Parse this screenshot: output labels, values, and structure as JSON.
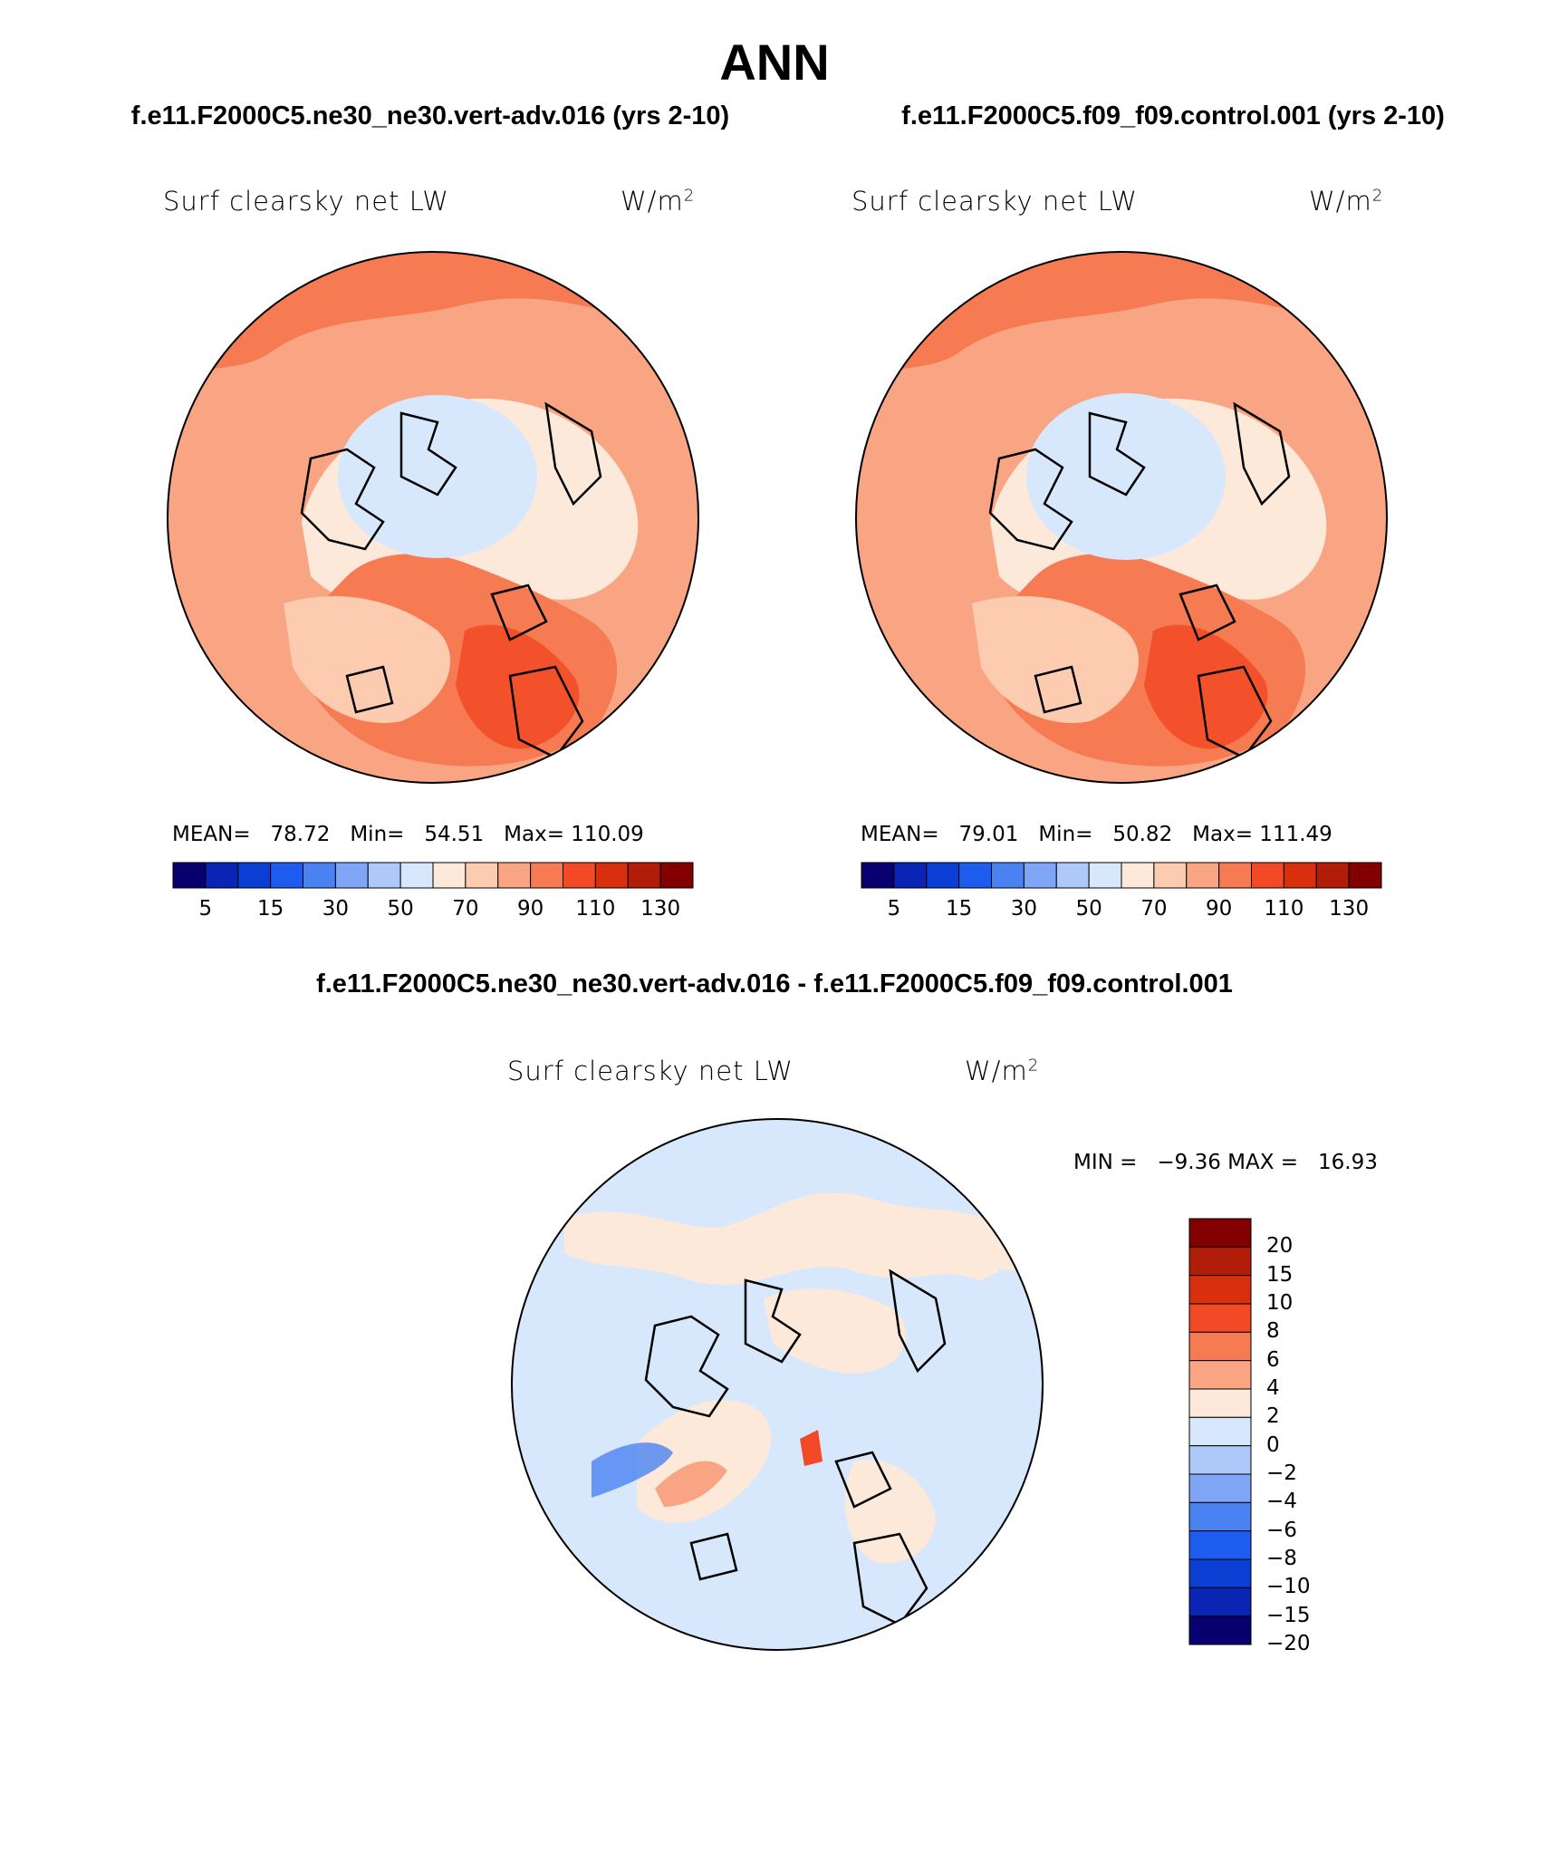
{
  "page_title": "ANN",
  "panels": [
    {
      "case_title": "f.e11.F2000C5.ne30_ne30.vert-adv.016 (yrs 2-10)",
      "variable": "Surf clearsky net LW",
      "units_base": "W/m",
      "units_exp": "2",
      "stats": {
        "mean_label": "MEAN=",
        "mean": "78.72",
        "min_label": "Min=",
        "min": "54.51",
        "max_label": "Max=",
        "max": "110.09"
      }
    },
    {
      "case_title": "f.e11.F2000C5.f09_f09.control.001 (yrs 2-10)",
      "variable": "Surf clearsky net LW",
      "units_base": "W/m",
      "units_exp": "2",
      "stats": {
        "mean_label": "MEAN=",
        "mean": "79.01",
        "min_label": "Min=",
        "min": "50.82",
        "max_label": "Max=",
        "max": "111.49"
      }
    }
  ],
  "difference": {
    "title": "f.e11.F2000C5.ne30_ne30.vert-adv.016 - f.e11.F2000C5.f09_f09.control.001",
    "variable": "Surf clearsky net LW",
    "units_base": "W/m",
    "units_exp": "2",
    "stats": {
      "min_label": "MIN =",
      "min": "−9.36",
      "max_label": "MAX =",
      "max": "16.93"
    }
  },
  "colorbar_main": {
    "colors": [
      "#08006e",
      "#0a24b4",
      "#0b3fd4",
      "#1e5cf0",
      "#4a82f2",
      "#7fa6f6",
      "#aec8f9",
      "#d7e8fc",
      "#fde9da",
      "#fccbb0",
      "#f9a583",
      "#f67a52",
      "#f24a26",
      "#d8300f",
      "#b11d09",
      "#820000"
    ],
    "labels": [
      "5",
      "15",
      "30",
      "50",
      "70",
      "90",
      "110",
      "130"
    ]
  },
  "colorbar_diff": {
    "colors": [
      "#820000",
      "#b11d09",
      "#d8300f",
      "#f24a26",
      "#f67a52",
      "#f9a583",
      "#fde9da",
      "#d7e8fc",
      "#aec8f9",
      "#7fa6f6",
      "#4a82f2",
      "#1e5cf0",
      "#0b3fd4",
      "#0a24b4",
      "#08006e"
    ],
    "labels": [
      "20",
      "15",
      "10",
      "8",
      "6",
      "4",
      "2",
      "0",
      "−2",
      "−4",
      "−6",
      "−8",
      "−10",
      "−15",
      "−20"
    ]
  }
}
